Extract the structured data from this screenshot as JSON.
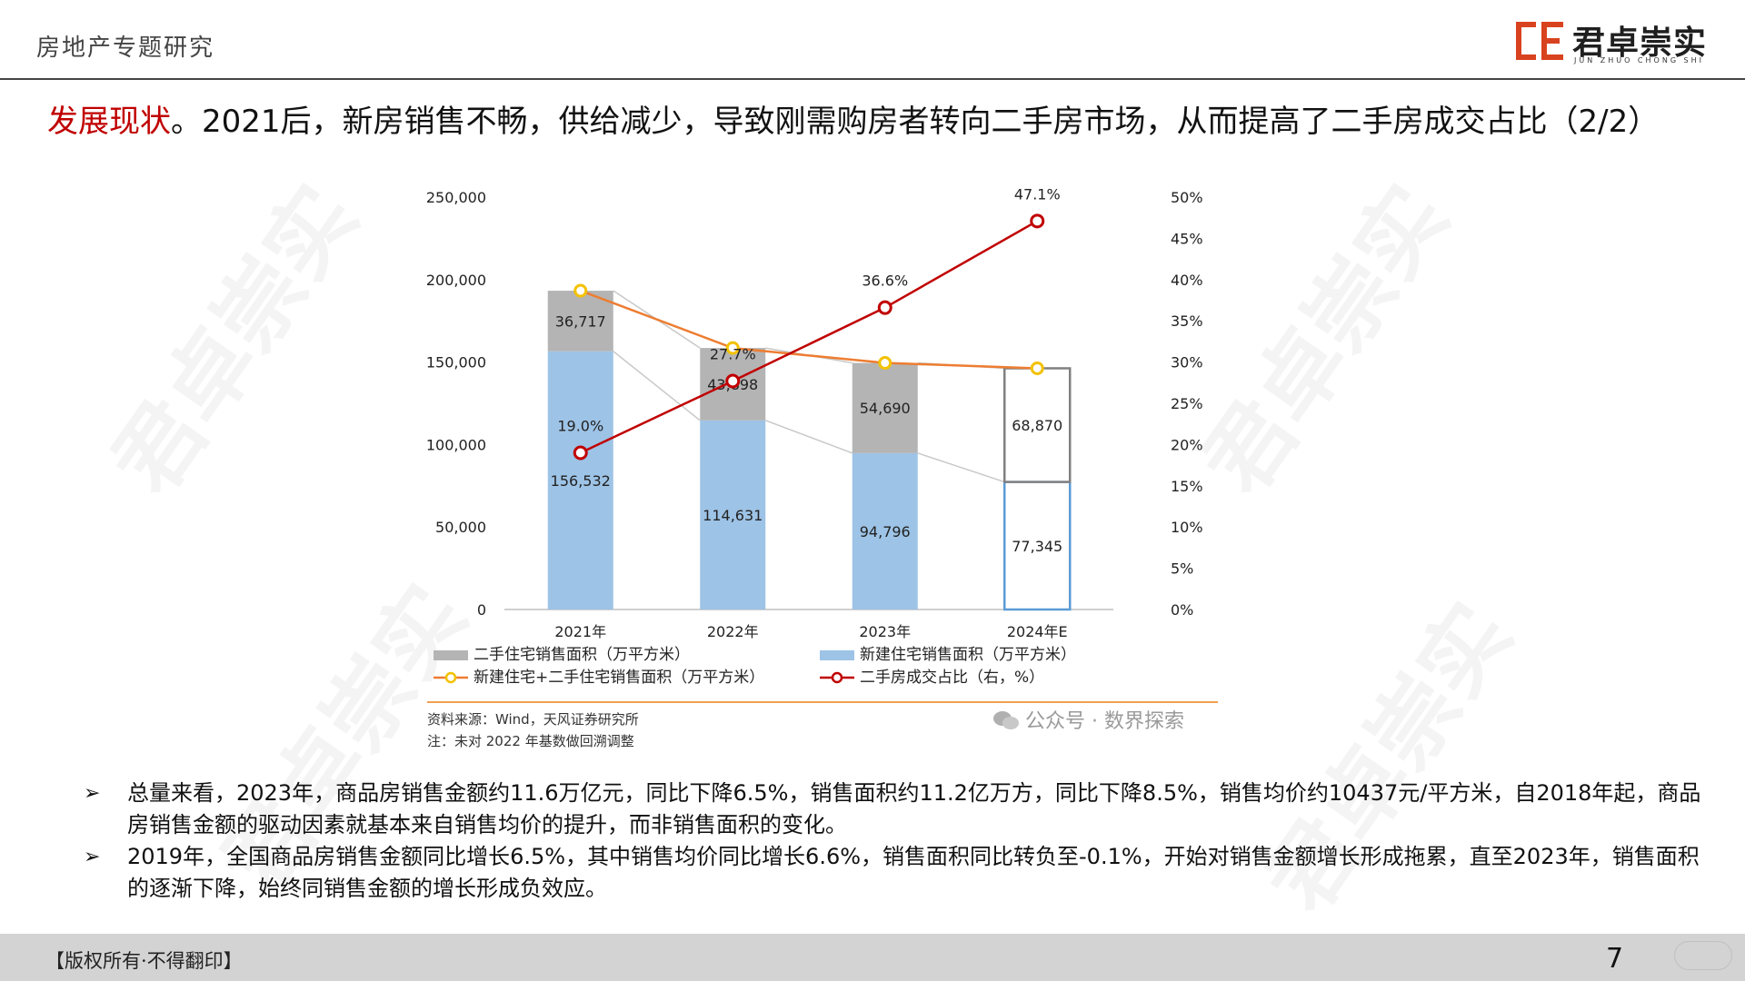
{
  "header": {
    "section_title": "房地产专题研究",
    "logo_text": "君卓崇实",
    "logo_sub": "JUN ZHUO CHONG SHI"
  },
  "headline": {
    "highlight": "发展现状",
    "rest": "。2021后，新房销售不畅，供给减少，导致刚需购房者转向二手房市场，从而提高了二手房成交占比（2/2）"
  },
  "watermark_text": "君卓崇实",
  "chart_data": {
    "type": "bar",
    "stacked": true,
    "categories": [
      "2021年",
      "2022年",
      "2023年",
      "2024年E"
    ],
    "series": [
      {
        "name": "新建住宅销售面积（万平方米）",
        "kind": "bar",
        "color": "#9dc3e6",
        "values": [
          156532,
          114631,
          94796,
          77345
        ],
        "labels": [
          "156,532",
          "114,631",
          "94,796",
          "77,345"
        ]
      },
      {
        "name": "二手住宅销售面积（万平方米）",
        "kind": "bar",
        "color": "#b4b4b4",
        "values": [
          36717,
          43898,
          54690,
          68870
        ],
        "labels": [
          "36,717",
          "43,898",
          "54,690",
          "68,870"
        ]
      },
      {
        "name": "新建住宅+二手住宅销售面积（万平方米）",
        "kind": "line",
        "color": "#ed7d31",
        "values": [
          193249,
          158529,
          149486,
          146215
        ]
      },
      {
        "name": "二手房成交占比（右，%）",
        "kind": "line",
        "axis": "right",
        "color": "#c00000",
        "values": [
          19.0,
          27.7,
          36.6,
          47.1
        ],
        "labels": [
          "19.0%",
          "27.7%",
          "36.6%",
          "47.1%"
        ]
      }
    ],
    "y_left": {
      "min": 0,
      "max": 250000,
      "ticks": [
        "0",
        "50,000",
        "100,000",
        "150,000",
        "200,000",
        "250,000"
      ]
    },
    "y_right": {
      "min": 0,
      "max": 50,
      "ticks": [
        "0%",
        "5%",
        "10%",
        "15%",
        "20%",
        "25%",
        "30%",
        "35%",
        "40%",
        "45%",
        "50%"
      ]
    },
    "grid": false,
    "legend_position": "bottom"
  },
  "chart_notes": {
    "source": "资料来源：Wind，天风证券研究所",
    "note": "注：未对 2022 年基数做回溯调整",
    "wechat": "公众号 · 数界探索"
  },
  "bullets": [
    "总量来看，2023年，商品房销售金额约11.6万亿元，同比下降6.5%，销售面积约11.2亿万方，同比下降8.5%，销售均价约10437元/平方米，自2018年起，商品房销售金额的驱动因素就基本来自销售均价的提升，而非销售面积的变化。",
    "2019年，全国商品房销售金额同比增长6.5%，其中销售均价同比增长6.6%，销售面积同比转负至-0.1%，开始对销售金额增长形成拖累，直至2023年，销售面积的逐渐下降，始终同销售金额的增长形成负效应。"
  ],
  "bullet_marker": "➢",
  "footer": {
    "copyright": "【版权所有·不得翻印】",
    "page_number": "7"
  }
}
